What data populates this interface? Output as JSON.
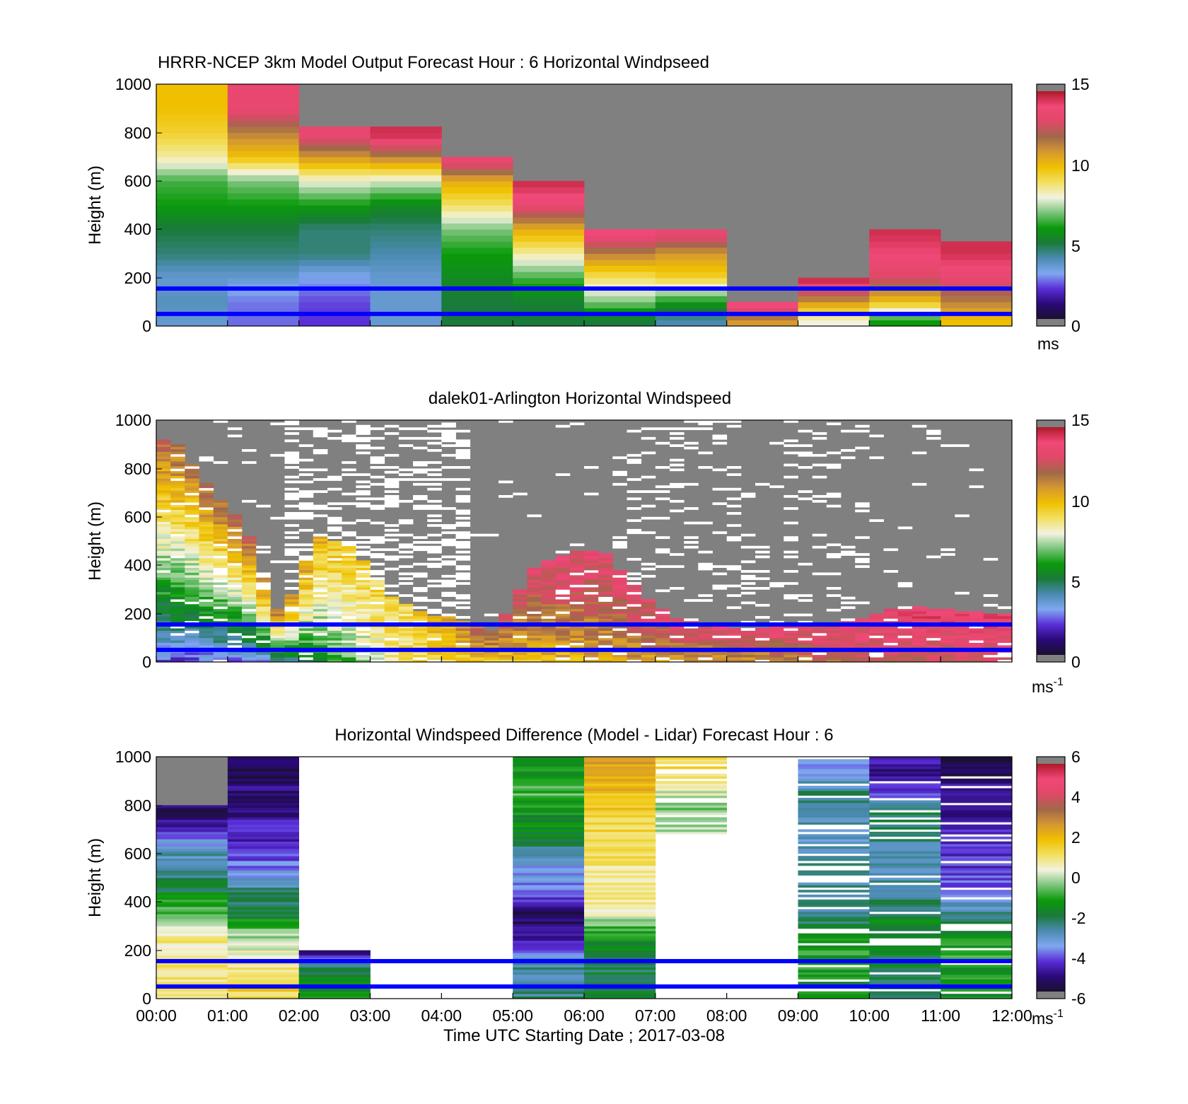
{
  "figure": {
    "xlabel": "Time UTC  Starting Date ; 2017-03-08",
    "time_ticks": [
      "00:00",
      "01:00",
      "02:00",
      "03:00",
      "04:00",
      "05:00",
      "06:00",
      "07:00",
      "08:00",
      "09:00",
      "10:00",
      "11:00",
      "12:00"
    ],
    "overlay_line_color": "#0000ff",
    "overlay_line_heights_m": [
      50,
      155
    ]
  },
  "colorbars": {
    "speed": {
      "ticks": [
        "0",
        "5",
        "10",
        "15"
      ],
      "stops": [
        "#1a1030",
        "#2a0a78",
        "#5a2ed8",
        "#7fa8f0",
        "#4a8ab0",
        "#1a7a3a",
        "#0a9a0a",
        "#7cc47c",
        "#f2f2e0",
        "#f2e060",
        "#f0c000",
        "#d69830",
        "#a0684a",
        "#e04868",
        "#f04878",
        "#b01828"
      ]
    },
    "diff": {
      "ticks": [
        "6",
        "4",
        "2",
        "0",
        "-2",
        "-4",
        "-6"
      ],
      "stops": [
        "#1a1030",
        "#2a0a78",
        "#5a2ed8",
        "#7fa8f0",
        "#4a8ab0",
        "#1a7a3a",
        "#0a9a0a",
        "#7cc47c",
        "#f2f2e0",
        "#f2e060",
        "#f0c000",
        "#d69830",
        "#a0684a",
        "#e04868",
        "#f04878",
        "#b01828"
      ]
    }
  },
  "panels": [
    {
      "title": "HRRR-NCEP 3km Model Output   Forecast Hour : 6 Horizontal Windpseed",
      "ylabel": "Height (m)",
      "yticks": [
        "0",
        "200",
        "400",
        "600",
        "800",
        "1000"
      ],
      "show_xticks": false,
      "unit": "ms",
      "unit_sup": "",
      "colorbar": "speed"
    },
    {
      "title": "dalek01-Arlington  Horizontal Windspeed",
      "ylabel": "Height (m)",
      "yticks": [
        "0",
        "200",
        "400",
        "600",
        "800",
        "1000"
      ],
      "show_xticks": false,
      "unit": "ms",
      "unit_sup": "-1",
      "colorbar": "speed"
    },
    {
      "title": "Horizontal Windspeed Difference (Model - Lidar) Forecast Hour : 6",
      "ylabel": "Height (m)",
      "yticks": [
        "0",
        "200",
        "400",
        "600",
        "800",
        "1000"
      ],
      "show_xticks": true,
      "unit": "ms",
      "unit_sup": "-1",
      "colorbar": "diff"
    }
  ],
  "chart_data": [
    {
      "type": "heatmap",
      "title": "HRRR-NCEP 3km Model Output   Forecast Hour : 6 Horizontal Windpseed",
      "ylabel": "Height (m)",
      "xlim_hours": [
        0,
        12
      ],
      "ylim": [
        0,
        1000
      ],
      "colorbar_range": [
        0,
        15
      ],
      "colorbar_unit": "ms",
      "grid": false,
      "approx_profiles": [
        {
          "hour_start": 0,
          "hour_end": 1,
          "top_m": 1000,
          "levels_m": [
            25,
            100,
            200,
            300,
            400,
            500,
            600,
            700,
            800,
            900
          ],
          "speed_ms": [
            3.5,
            3.8,
            3.5,
            4.5,
            5.0,
            6.0,
            6.5,
            8.5,
            9.5,
            10.0
          ]
        },
        {
          "hour_start": 1,
          "hour_end": 2,
          "top_m": 1000,
          "levels_m": [
            25,
            100,
            200,
            300,
            400,
            500,
            600,
            700,
            800,
            900
          ],
          "speed_ms": [
            2.5,
            2.6,
            3.5,
            4.5,
            5.0,
            6.0,
            7.0,
            10.0,
            11.5,
            13.5
          ]
        },
        {
          "hour_start": 2,
          "hour_end": 3,
          "top_m": 820,
          "levels_m": [
            25,
            100,
            200,
            300,
            400,
            500,
            600,
            700,
            790
          ],
          "speed_ms": [
            2.0,
            2.2,
            3.0,
            4.5,
            4.5,
            6.0,
            8.0,
            11.0,
            13.5
          ]
        },
        {
          "hour_start": 3,
          "hour_end": 4,
          "top_m": 820,
          "levels_m": [
            25,
            100,
            200,
            300,
            400,
            500,
            600,
            700,
            790
          ],
          "speed_ms": [
            3.5,
            3.5,
            3.5,
            4.0,
            4.5,
            5.5,
            7.8,
            11.5,
            14.5
          ]
        },
        {
          "hour_start": 4,
          "hour_end": 5,
          "top_m": 700,
          "levels_m": [
            25,
            100,
            200,
            300,
            400,
            500,
            600,
            680
          ],
          "speed_ms": [
            5.0,
            5.0,
            5.5,
            6.0,
            7.0,
            9.0,
            10.5,
            13.5
          ]
        },
        {
          "hour_start": 5,
          "hour_end": 6,
          "top_m": 600,
          "levels_m": [
            25,
            100,
            200,
            300,
            400,
            500,
            580
          ],
          "speed_ms": [
            5.0,
            5.2,
            6.5,
            8.5,
            10.5,
            13.5,
            14.5
          ]
        },
        {
          "hour_start": 6,
          "hour_end": 7,
          "top_m": 400,
          "levels_m": [
            25,
            100,
            200,
            300,
            380
          ],
          "speed_ms": [
            5.0,
            7.0,
            9.0,
            11.5,
            14.0
          ]
        },
        {
          "hour_start": 7,
          "hour_end": 8,
          "top_m": 400,
          "levels_m": [
            25,
            100,
            200,
            300,
            380
          ],
          "speed_ms": [
            4.0,
            6.0,
            9.5,
            11.0,
            13.5
          ]
        },
        {
          "hour_start": 8,
          "hour_end": 9,
          "top_m": 100,
          "levels_m": [
            25,
            80
          ],
          "speed_ms": [
            11.0,
            14.0
          ]
        },
        {
          "hour_start": 9,
          "hour_end": 10,
          "top_m": 200,
          "levels_m": [
            25,
            100,
            180
          ],
          "speed_ms": [
            8.0,
            11.0,
            14.5
          ]
        },
        {
          "hour_start": 10,
          "hour_end": 11,
          "top_m": 400,
          "levels_m": [
            25,
            100,
            200,
            300,
            380
          ],
          "speed_ms": [
            6.0,
            10.0,
            13.0,
            14.0,
            14.5
          ]
        },
        {
          "hour_start": 11,
          "hour_end": 12,
          "top_m": 350,
          "levels_m": [
            25,
            100,
            200,
            300
          ],
          "speed_ms": [
            10.0,
            11.5,
            13.5,
            14.5
          ]
        }
      ]
    },
    {
      "type": "heatmap",
      "title": "dalek01-Arlington  Horizontal Windspeed",
      "ylabel": "Height (m)",
      "xlim_hours": [
        0,
        12
      ],
      "ylim": [
        0,
        1000
      ],
      "colorbar_range": [
        0,
        15
      ],
      "colorbar_unit": "ms-1",
      "grid": false,
      "approx_column_tops_m": {
        "hours": [
          0.25,
          0.75,
          1.25,
          1.75,
          2.25,
          2.75,
          3.25,
          3.75,
          4.25,
          4.75,
          5.25,
          5.75,
          6.25,
          6.75,
          7.25,
          7.75,
          8.25,
          8.75,
          9.25,
          9.75,
          10.25,
          10.75,
          11.25,
          11.75
        ],
        "valid_top_m": [
          920,
          720,
          560,
          180,
          520,
          480,
          280,
          200,
          180,
          120,
          380,
          450,
          470,
          300,
          180,
          160,
          130,
          150,
          160,
          170,
          220,
          230,
          210,
          200
        ]
      },
      "approx_typical_speed_ms": {
        "hours": [
          0.5,
          1.5,
          2.5,
          3.5,
          4.5,
          5.5,
          6.5,
          7.5,
          8.5,
          9.5,
          10.5,
          11.5
        ],
        "near_surface": [
          2.0,
          2.5,
          6.0,
          9.0,
          9.5,
          10.0,
          10.5,
          11.0,
          11.0,
          12.0,
          12.5,
          12.5
        ],
        "aloft": [
          12.0,
          12.5,
          10.0,
          9.0,
          12.0,
          13.5,
          13.5,
          13.0,
          13.5,
          13.5,
          14.0,
          14.0
        ]
      }
    },
    {
      "type": "heatmap",
      "title": "Horizontal Windspeed Difference (Model - Lidar) Forecast Hour : 6",
      "ylabel": "Height (m)",
      "xlabel": "Time UTC  Starting Date ; 2017-03-08",
      "xlim_hours": [
        0,
        12
      ],
      "ylim": [
        0,
        1000
      ],
      "colorbar_range": [
        -6,
        6
      ],
      "colorbar_unit": "ms-1",
      "grid": false,
      "approx_profiles": [
        {
          "hour_start": 0,
          "hour_end": 1,
          "top_m": 800,
          "levels_m": [
            50,
            150,
            250,
            350,
            450,
            550,
            650,
            750
          ],
          "diff_ms": [
            1.0,
            1.0,
            0.8,
            -0.5,
            -2.0,
            -2.5,
            -3.5,
            -5.5
          ]
        },
        {
          "hour_start": 1,
          "hour_end": 2,
          "top_m": 1000,
          "levels_m": [
            50,
            150,
            250,
            350,
            450,
            550,
            650,
            750,
            850,
            950
          ],
          "diff_ms": [
            1.5,
            1.0,
            0.0,
            -1.8,
            -2.5,
            -4.0,
            -4.5,
            -5.0,
            -5.2,
            -5.5
          ]
        },
        {
          "hour_start": 2,
          "hour_end": 3,
          "top_m": 200,
          "levels_m": [
            50,
            120,
            190
          ],
          "diff_ms": [
            -1.5,
            -2.0,
            -5.0
          ]
        },
        {
          "hour_start": 5,
          "hour_end": 6,
          "top_m": 1000,
          "levels_m": [
            50,
            150,
            250,
            350,
            450,
            550,
            650,
            750,
            850,
            950
          ],
          "diff_ms": [
            -2.5,
            -2.8,
            -5.0,
            -5.5,
            -4.0,
            -3.5,
            -2.0,
            -1.5,
            -0.8,
            -1.5
          ]
        },
        {
          "hour_start": 6,
          "hour_end": 7,
          "top_m": 1000,
          "levels_m": [
            50,
            150,
            250,
            350,
            450,
            550,
            650,
            750,
            850,
            950
          ],
          "diff_ms": [
            -2.0,
            -2.2,
            -1.5,
            0.5,
            1.0,
            1.0,
            1.2,
            1.5,
            2.0,
            2.5
          ]
        },
        {
          "hour_start": 7,
          "hour_end": 8,
          "top_m": 1000,
          "levels_m": [
            700,
            800,
            900,
            950
          ],
          "diff_ms": [
            0.0,
            -0.5,
            1.0,
            1.5
          ]
        },
        {
          "hour_start": 9,
          "hour_end": 10,
          "top_m": 1000,
          "levels_m": [
            50,
            150,
            250,
            350,
            650,
            850,
            950
          ],
          "diff_ms": [
            -1.5,
            -1.0,
            -1.5,
            -2.5,
            -3.0,
            -2.5,
            -4.0
          ]
        },
        {
          "hour_start": 10,
          "hour_end": 11,
          "top_m": 1000,
          "levels_m": [
            50,
            150,
            250,
            350,
            550,
            650,
            750,
            850,
            950
          ],
          "diff_ms": [
            -2.0,
            -2.0,
            -1.5,
            -2.0,
            -3.0,
            -2.5,
            -2.0,
            -4.0,
            -5.0
          ]
        },
        {
          "hour_start": 11,
          "hour_end": 12,
          "top_m": 1000,
          "levels_m": [
            50,
            150,
            250,
            350,
            450,
            550,
            650,
            850,
            950
          ],
          "diff_ms": [
            -1.5,
            -1.0,
            -1.5,
            -2.5,
            -4.0,
            -4.5,
            -4.5,
            -5.0,
            -5.5
          ]
        }
      ]
    }
  ]
}
